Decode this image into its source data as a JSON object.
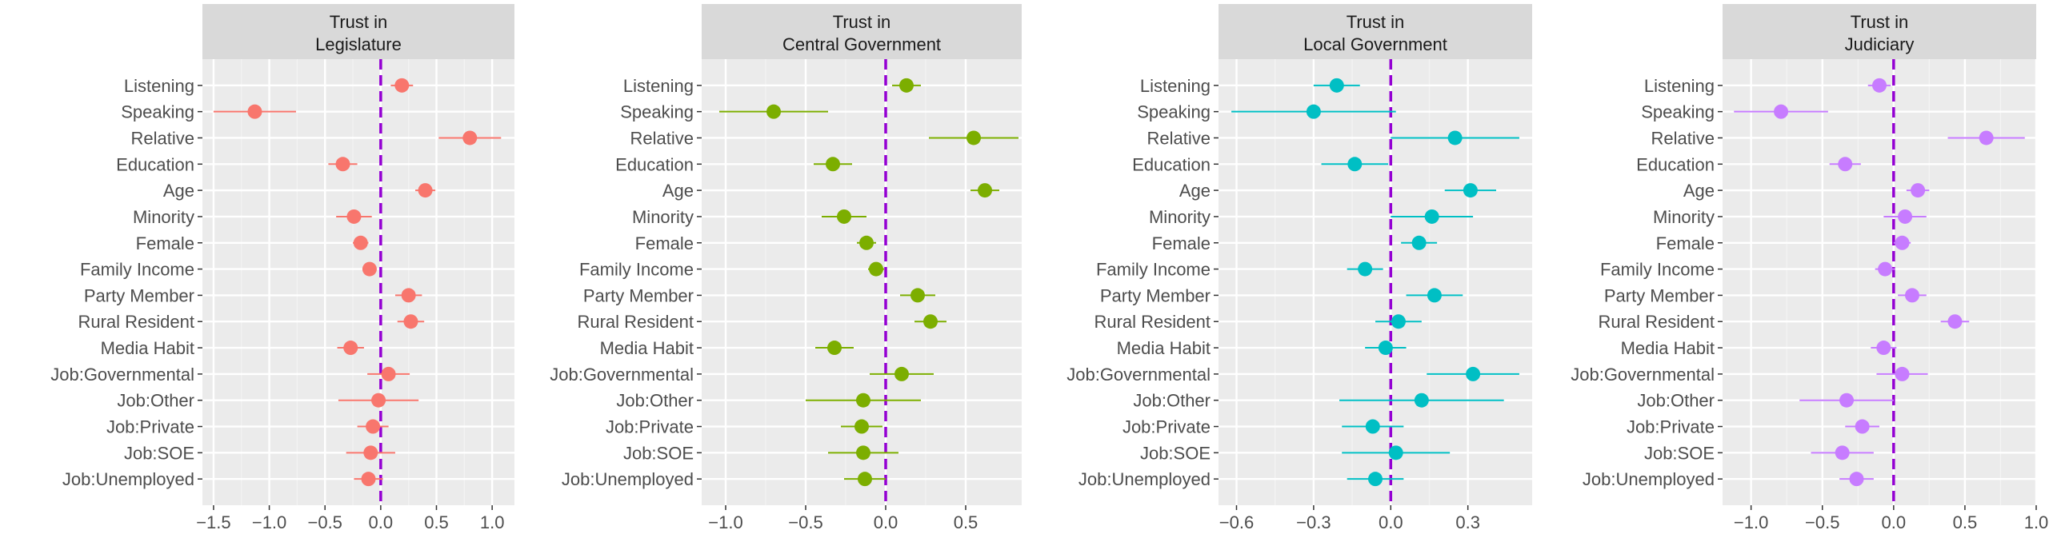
{
  "chart_data": [
    {
      "type": "scatter",
      "title_lines": [
        "Trust in",
        "Legislature"
      ],
      "color": "#F8766D",
      "xlim": [
        -1.6,
        1.2
      ],
      "xticks": [
        -1.5,
        -1.0,
        -0.5,
        0.0,
        0.5,
        1.0
      ],
      "xtick_labels": [
        "−1.5",
        "−1.0",
        "−0.5",
        "0.0",
        "0.5",
        "1.0"
      ],
      "reference_line": 0,
      "categories": [
        "Listening",
        "Speaking",
        "Relative",
        "Education",
        "Age",
        "Minority",
        "Female",
        "Family Income",
        "Party Member",
        "Rural Resident",
        "Media Habit",
        "Job:Governmental",
        "Job:Other",
        "Job:Private",
        "Job:SOE",
        "Job:Unemployed"
      ],
      "estimate": [
        0.19,
        -1.13,
        0.8,
        -0.34,
        0.4,
        -0.24,
        -0.18,
        -0.1,
        0.25,
        0.27,
        -0.27,
        0.07,
        -0.02,
        -0.07,
        -0.09,
        -0.11
      ],
      "lower": [
        0.09,
        -1.5,
        0.52,
        -0.47,
        0.31,
        -0.4,
        -0.25,
        -0.16,
        0.13,
        0.15,
        -0.39,
        -0.12,
        -0.38,
        -0.21,
        -0.31,
        -0.24
      ],
      "upper": [
        0.29,
        -0.76,
        1.08,
        -0.21,
        0.49,
        -0.08,
        -0.11,
        -0.04,
        0.37,
        0.39,
        -0.15,
        0.26,
        0.34,
        0.07,
        0.13,
        0.02
      ]
    },
    {
      "type": "scatter",
      "title_lines": [
        "Trust in",
        "Central Government"
      ],
      "color": "#7CAE00",
      "xlim": [
        -1.15,
        0.85
      ],
      "xticks": [
        -1.0,
        -0.5,
        0.0,
        0.5
      ],
      "xtick_labels": [
        "−1.0",
        "−0.5",
        "0.0",
        "0.5"
      ],
      "reference_line": 0,
      "categories": [
        "Listening",
        "Speaking",
        "Relative",
        "Education",
        "Age",
        "Minority",
        "Female",
        "Family Income",
        "Party Member",
        "Rural Resident",
        "Media Habit",
        "Job:Governmental",
        "Job:Other",
        "Job:Private",
        "Job:SOE",
        "Job:Unemployed"
      ],
      "estimate": [
        0.13,
        -0.7,
        0.55,
        -0.33,
        0.62,
        -0.26,
        -0.12,
        -0.06,
        0.2,
        0.28,
        -0.32,
        0.1,
        -0.14,
        -0.15,
        -0.14,
        -0.13
      ],
      "lower": [
        0.04,
        -1.04,
        0.27,
        -0.45,
        0.53,
        -0.4,
        -0.18,
        -0.11,
        0.09,
        0.18,
        -0.44,
        -0.1,
        -0.5,
        -0.28,
        -0.36,
        -0.26
      ],
      "upper": [
        0.22,
        -0.36,
        0.83,
        -0.21,
        0.71,
        -0.12,
        -0.06,
        -0.01,
        0.31,
        0.38,
        -0.2,
        0.3,
        0.22,
        -0.02,
        0.08,
        0.0
      ]
    },
    {
      "type": "scatter",
      "title_lines": [
        "Trust in",
        "Local Government"
      ],
      "color": "#00BFC4",
      "xlim": [
        -0.67,
        0.55
      ],
      "xticks": [
        -0.6,
        -0.3,
        0.0,
        0.3
      ],
      "xtick_labels": [
        "−0.6",
        "−0.3",
        "0.0",
        "0.3"
      ],
      "reference_line": 0,
      "categories": [
        "Listening",
        "Speaking",
        "Relative",
        "Education",
        "Age",
        "Minority",
        "Female",
        "Family Income",
        "Party Member",
        "Rural Resident",
        "Media Habit",
        "Job:Governmental",
        "Job:Other",
        "Job:Private",
        "Job:SOE",
        "Job:Unemployed"
      ],
      "estimate": [
        -0.21,
        -0.3,
        0.25,
        -0.14,
        0.31,
        0.16,
        0.11,
        -0.1,
        0.17,
        0.03,
        -0.02,
        0.32,
        0.12,
        -0.07,
        0.02,
        -0.06
      ],
      "lower": [
        -0.3,
        -0.62,
        0.0,
        -0.27,
        0.21,
        0.0,
        0.04,
        -0.17,
        0.06,
        -0.06,
        -0.1,
        0.14,
        -0.2,
        -0.19,
        -0.19,
        -0.17
      ],
      "upper": [
        -0.12,
        0.02,
        0.5,
        -0.01,
        0.41,
        0.32,
        0.18,
        -0.03,
        0.28,
        0.12,
        0.06,
        0.5,
        0.44,
        0.05,
        0.23,
        0.05
      ]
    },
    {
      "type": "scatter",
      "title_lines": [
        "Trust in",
        "Judiciary"
      ],
      "color": "#C77CFF",
      "xlim": [
        -1.2,
        1.0
      ],
      "xticks": [
        -1.0,
        -0.5,
        0.0,
        0.5,
        1.0
      ],
      "xtick_labels": [
        "−1.0",
        "−0.5",
        "0.0",
        "0.5",
        "1.0"
      ],
      "reference_line": 0,
      "categories": [
        "Listening",
        "Speaking",
        "Relative",
        "Education",
        "Age",
        "Minority",
        "Female",
        "Family Income",
        "Party Member",
        "Rural Resident",
        "Media Habit",
        "Job:Governmental",
        "Job:Other",
        "Job:Private",
        "Job:SOE",
        "Job:Unemployed"
      ],
      "estimate": [
        -0.1,
        -0.79,
        0.65,
        -0.34,
        0.17,
        0.08,
        0.06,
        -0.06,
        0.13,
        0.43,
        -0.07,
        0.06,
        -0.33,
        -0.22,
        -0.36,
        -0.26
      ],
      "lower": [
        -0.18,
        -1.12,
        0.38,
        -0.45,
        0.09,
        -0.07,
        0.0,
        -0.13,
        0.03,
        0.33,
        -0.16,
        -0.12,
        -0.66,
        -0.34,
        -0.58,
        -0.38
      ],
      "upper": [
        -0.02,
        -0.46,
        0.92,
        -0.23,
        0.25,
        0.23,
        0.12,
        0.01,
        0.23,
        0.53,
        0.02,
        0.24,
        0.0,
        -0.1,
        -0.14,
        -0.14
      ]
    }
  ]
}
